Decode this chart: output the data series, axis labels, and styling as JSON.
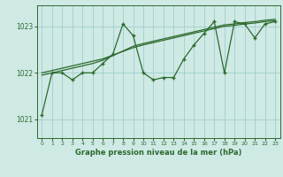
{
  "title": "Graphe pression niveau de la mer (hPa)",
  "bg_color": "#cfe9e5",
  "grid_color": "#9ecfca",
  "line_color": "#2d6a2d",
  "xlim": [
    -0.5,
    23.5
  ],
  "ylim": [
    1020.6,
    1023.45
  ],
  "yticks": [
    1021,
    1022,
    1023
  ],
  "xticks": [
    0,
    1,
    2,
    3,
    4,
    5,
    6,
    7,
    8,
    9,
    10,
    11,
    12,
    13,
    14,
    15,
    16,
    17,
    18,
    19,
    20,
    21,
    22,
    23
  ],
  "hours": [
    0,
    1,
    2,
    3,
    4,
    5,
    6,
    7,
    8,
    9,
    10,
    11,
    12,
    13,
    14,
    15,
    16,
    17,
    18,
    19,
    20,
    21,
    22,
    23
  ],
  "pressure_main": [
    1021.1,
    1022.0,
    1022.0,
    1021.85,
    1022.0,
    1022.0,
    1022.2,
    1022.4,
    1023.05,
    1022.8,
    1022.0,
    1021.85,
    1021.9,
    1021.9,
    1022.3,
    1022.6,
    1022.85,
    1023.1,
    1022.0,
    1023.1,
    1023.05,
    1022.75,
    1023.05,
    1023.1
  ],
  "pressure_trend1": [
    1022.0,
    1022.05,
    1022.1,
    1022.15,
    1022.2,
    1022.25,
    1022.3,
    1022.38,
    1022.46,
    1022.54,
    1022.6,
    1022.65,
    1022.7,
    1022.75,
    1022.8,
    1022.85,
    1022.9,
    1022.95,
    1023.0,
    1023.02,
    1023.05,
    1023.07,
    1023.1,
    1023.12
  ],
  "pressure_trend2": [
    1021.95,
    1022.0,
    1022.05,
    1022.1,
    1022.15,
    1022.2,
    1022.27,
    1022.37,
    1022.47,
    1022.57,
    1022.63,
    1022.68,
    1022.73,
    1022.78,
    1022.83,
    1022.88,
    1022.93,
    1022.98,
    1023.03,
    1023.05,
    1023.08,
    1023.1,
    1023.13,
    1023.15
  ]
}
